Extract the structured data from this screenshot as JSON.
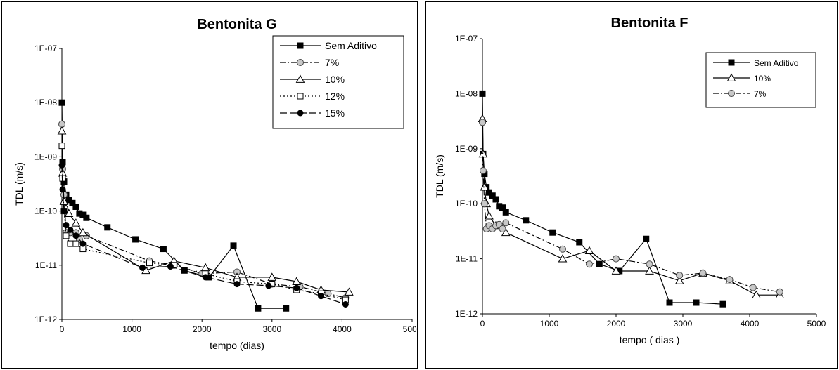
{
  "chart_data": [
    {
      "type": "line",
      "title": "Bentonita G",
      "xlabel": "tempo  (dias)",
      "ylabel": "TDL   (m/s)",
      "xlim": [
        0,
        5000
      ],
      "ylim": [
        1e-12,
        1e-07
      ],
      "yscale": "log",
      "xticks": [
        "0",
        "1000",
        "2000",
        "3000",
        "4000",
        "5000"
      ],
      "yticks": [
        "1E-12",
        "1E-11",
        "1E-10",
        "1E-09",
        "1E-08",
        "1E-07"
      ],
      "grid": false,
      "legend_position": "top-right",
      "series": [
        {
          "name": "Sem Aditivo",
          "marker": "square-filled",
          "dash": "solid",
          "x": [
            0,
            10,
            30,
            60,
            100,
            150,
            200,
            250,
            300,
            350,
            650,
            1050,
            1450,
            1750,
            2100,
            2450,
            2800,
            3200
          ],
          "y": [
            1e-08,
            8e-10,
            3.5e-10,
            2e-10,
            1.6e-10,
            1.4e-10,
            1.2e-10,
            9e-11,
            8.5e-11,
            7.5e-11,
            5e-11,
            3e-11,
            2e-11,
            8e-12,
            6e-12,
            2.3e-11,
            1.6e-12,
            1.6e-12
          ]
        },
        {
          "name": "7%",
          "marker": "circle-dotted",
          "dash": "dashdot",
          "x": [
            0,
            10,
            30,
            60,
            120,
            200,
            250,
            350,
            1250,
            1600,
            2000,
            2500,
            3000,
            3400,
            3800,
            4050
          ],
          "y": [
            4e-09,
            6e-10,
            2e-10,
            4e-11,
            4e-11,
            4e-11,
            3e-11,
            3.5e-11,
            1.2e-11,
            1e-11,
            7e-12,
            7.5e-12,
            4.5e-12,
            4e-12,
            3e-12,
            2.5e-12
          ]
        },
        {
          "name": "10%",
          "marker": "triangle-open",
          "dash": "solid",
          "x": [
            0,
            10,
            30,
            60,
            100,
            200,
            300,
            1200,
            1600,
            2050,
            2500,
            3000,
            3350,
            3700,
            4100
          ],
          "y": [
            3e-09,
            5e-10,
            1.5e-10,
            1.1e-10,
            9e-11,
            6e-11,
            4e-11,
            8e-12,
            1.2e-11,
            9e-12,
            6e-12,
            6e-12,
            5e-12,
            3.5e-12,
            3.2e-12
          ]
        },
        {
          "name": "12%",
          "marker": "square-open",
          "dash": "dotted",
          "x": [
            0,
            10,
            30,
            60,
            120,
            200,
            300,
            1250,
            1600,
            2050,
            2500,
            3000,
            3350,
            3700,
            4050
          ],
          "y": [
            1.6e-09,
            4e-10,
            1e-10,
            3.5e-11,
            2.5e-11,
            2.5e-11,
            2e-11,
            1.1e-11,
            1e-11,
            7e-12,
            5e-12,
            4.5e-12,
            3.5e-12,
            3e-12,
            2.3e-12
          ]
        },
        {
          "name": "15%",
          "marker": "circle-filled",
          "dash": "longdash",
          "x": [
            0,
            10,
            30,
            60,
            120,
            200,
            300,
            1150,
            1550,
            2050,
            2500,
            2950,
            3350,
            3700,
            4050
          ],
          "y": [
            7e-10,
            2.5e-10,
            1e-10,
            5.5e-11,
            4.5e-11,
            3.5e-11,
            2.5e-11,
            9e-12,
            9.5e-12,
            6e-12,
            4.5e-12,
            4.2e-12,
            3.8e-12,
            2.7e-12,
            1.9e-12
          ]
        }
      ]
    },
    {
      "type": "line",
      "title": "Bentonita F",
      "xlabel": "tempo   ( dias )",
      "ylabel": "TDL  (m/s)",
      "xlim": [
        0,
        5000
      ],
      "ylim": [
        1e-12,
        1e-07
      ],
      "yscale": "log",
      "xticks": [
        "0",
        "1000",
        "2000",
        "3000",
        "4000",
        "5000"
      ],
      "yticks": [
        "1E-12",
        "1E-11",
        "1E-10",
        "1E-09",
        "1E-08",
        "1E-07"
      ],
      "grid": false,
      "legend_position": "top-right",
      "series": [
        {
          "name": "Sem Aditivo",
          "marker": "square-filled",
          "dash": "solid",
          "x": [
            0,
            10,
            30,
            60,
            100,
            150,
            200,
            250,
            300,
            350,
            650,
            1050,
            1450,
            1750,
            2050,
            2450,
            2800,
            3200,
            3600
          ],
          "y": [
            1e-08,
            8e-10,
            3.5e-10,
            2e-10,
            1.6e-10,
            1.4e-10,
            1.2e-10,
            9e-11,
            8.5e-11,
            7e-11,
            5e-11,
            3e-11,
            2e-11,
            8e-12,
            6e-12,
            2.3e-11,
            1.6e-12,
            1.6e-12,
            1.5e-12
          ]
        },
        {
          "name": "10%",
          "marker": "triangle-open",
          "dash": "solid",
          "x": [
            0,
            10,
            30,
            60,
            100,
            200,
            350,
            1200,
            1600,
            2000,
            2500,
            2950,
            3300,
            3700,
            4100,
            4450
          ],
          "y": [
            3.5e-09,
            8e-10,
            2e-10,
            1e-10,
            6e-11,
            4e-11,
            3e-11,
            1e-11,
            1.4e-11,
            6e-12,
            6e-12,
            4e-12,
            5.5e-12,
            4e-12,
            2.2e-12,
            2.2e-12
          ]
        },
        {
          "name": "7%",
          "marker": "circle-dotted",
          "dash": "dashdot",
          "x": [
            0,
            10,
            30,
            60,
            100,
            150,
            200,
            250,
            300,
            350,
            1200,
            1600,
            2000,
            2500,
            2950,
            3300,
            3700,
            4050,
            4450
          ],
          "y": [
            3e-09,
            4e-10,
            1e-10,
            3.5e-11,
            4e-11,
            3.5e-11,
            4e-11,
            4.2e-11,
            3.5e-11,
            4.5e-11,
            1.5e-11,
            8e-12,
            1e-11,
            8e-12,
            5e-12,
            5.5e-12,
            4.2e-12,
            3e-12,
            2.5e-12
          ]
        }
      ]
    }
  ]
}
